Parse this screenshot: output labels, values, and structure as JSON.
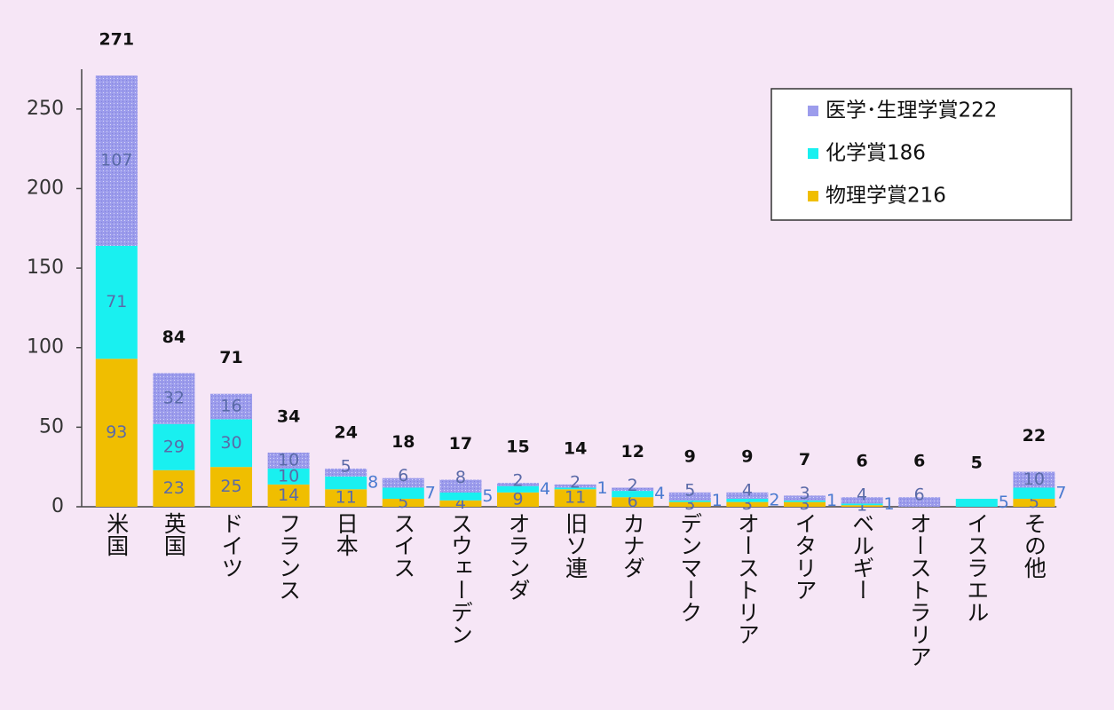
{
  "chart_data": {
    "type": "stacked-bar",
    "categories": [
      "米国",
      "英国",
      "ドイツ",
      "フランス",
      "日本",
      "スイス",
      "スウェーデン",
      "オランダ",
      "旧ソ連",
      "カナダ",
      "デンマーク",
      "オーストリア",
      "イタリア",
      "ベルギー",
      "オーストラリア",
      "イスラエル",
      "その他"
    ],
    "series": [
      {
        "name": "物理学賞216",
        "color": "#f0be00",
        "values": [
          93,
          23,
          25,
          14,
          11,
          5,
          4,
          9,
          11,
          6,
          3,
          3,
          3,
          1,
          0,
          0,
          5
        ]
      },
      {
        "name": "化学賞186",
        "color": "#19f0f0",
        "values": [
          71,
          29,
          30,
          10,
          8,
          7,
          5,
          4,
          1,
          4,
          1,
          2,
          1,
          1,
          0,
          5,
          7
        ]
      },
      {
        "name": "医学･生理学賞222",
        "color": "#9c9cec",
        "values": [
          107,
          32,
          16,
          10,
          5,
          6,
          8,
          2,
          2,
          2,
          5,
          4,
          3,
          4,
          6,
          0,
          10
        ]
      }
    ],
    "totals": [
      271,
      84,
      71,
      34,
      24,
      18,
      17,
      15,
      14,
      12,
      9,
      9,
      7,
      6,
      6,
      5,
      22
    ],
    "ylim": [
      0,
      275
    ],
    "yticks": [
      0,
      50,
      100,
      150,
      200,
      250
    ],
    "legend": "upper right"
  }
}
